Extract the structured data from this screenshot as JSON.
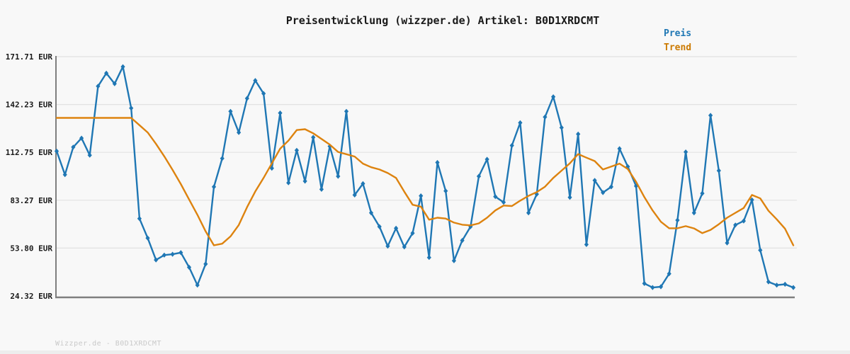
{
  "title": "Preisentwicklung (wizzper.de) Artikel: B0D1XRDCMT",
  "legend": {
    "items": [
      {
        "label": "Preis",
        "color": "#1f77b4"
      },
      {
        "label": "Trend",
        "color": "#cc7a00"
      }
    ]
  },
  "footer": "Wizzper.de - B0D1XRDCMT",
  "chart_data": {
    "type": "line",
    "title": "Preisentwicklung (wizzper.de) Artikel: B0D1XRDCMT",
    "xlabel": "",
    "ylabel": "EUR",
    "x_tick_labels_visible": false,
    "grid": true,
    "legend_position": "upper right",
    "ylim": [
      24.32,
      171.71
    ],
    "n_points": 90,
    "y_ticks": [
      {
        "label": "171.71 EUR",
        "value": 171.71
      },
      {
        "label": "142.23 EUR",
        "value": 142.23
      },
      {
        "label": "112.75 EUR",
        "value": 112.75
      },
      {
        "label": "83.27 EUR",
        "value": 83.27
      },
      {
        "label": "53.80 EUR",
        "value": 53.8
      },
      {
        "label": "24.32 EUR",
        "value": 24.32
      }
    ],
    "grid_color": "#e2e2e2",
    "axis_color": "#7f7f7f",
    "series": [
      {
        "name": "Preis",
        "color": "#1f77b4",
        "marker": "diamond",
        "values": [
          113.5,
          99,
          116,
          121.5,
          111,
          153.5,
          161.5,
          155,
          165.5,
          140,
          72,
          60,
          46.5,
          49.5,
          50,
          51,
          42,
          31,
          44,
          91.5,
          109,
          138,
          125,
          146,
          157,
          149,
          103,
          137,
          94,
          114,
          95,
          122,
          90,
          116.5,
          98,
          138,
          86.5,
          93.5,
          75.5,
          67,
          55,
          66,
          54.5,
          63,
          86,
          48,
          106.5,
          89,
          46,
          58.5,
          67,
          98,
          108.5,
          85.5,
          82,
          117,
          131,
          75.5,
          87,
          134.5,
          147,
          128,
          85,
          124,
          56,
          95.5,
          88,
          91.5,
          115,
          104,
          92,
          32,
          29.5,
          30,
          38,
          71,
          113,
          75.5,
          87.5,
          135.5,
          101.5,
          57,
          68,
          70.5,
          83.5,
          52.5,
          33,
          31,
          31.5,
          29.5
        ]
      },
      {
        "name": "Trend",
        "color": "#dd830f",
        "marker": "none",
        "values": [
          134,
          134,
          134,
          134,
          134,
          134,
          134,
          134,
          134,
          134,
          129.5,
          125,
          118,
          110.3,
          102,
          93.2,
          83.7,
          74.3,
          64.1,
          55.5,
          56.5,
          61,
          68,
          79,
          88.7,
          97,
          106,
          115,
          120,
          126.5,
          127,
          124.5,
          121,
          117.5,
          113,
          111.6,
          110.2,
          105.8,
          103.6,
          102.2,
          100,
          97,
          88.5,
          80.5,
          79.3,
          71.3,
          72.5,
          72,
          69.5,
          68.2,
          67.8,
          69,
          72.5,
          77,
          80,
          79.7,
          83,
          86,
          88.3,
          91.6,
          97,
          101.5,
          106,
          111.7,
          109.5,
          107.4,
          102.2,
          104,
          105.8,
          102.5,
          94.6,
          85.2,
          77,
          70,
          66,
          66,
          67.3,
          65.9,
          63,
          65,
          68.5,
          72.5,
          75.5,
          78.5,
          86.5,
          84.4,
          76.8,
          71.5,
          65.7,
          55.5
        ]
      }
    ]
  }
}
